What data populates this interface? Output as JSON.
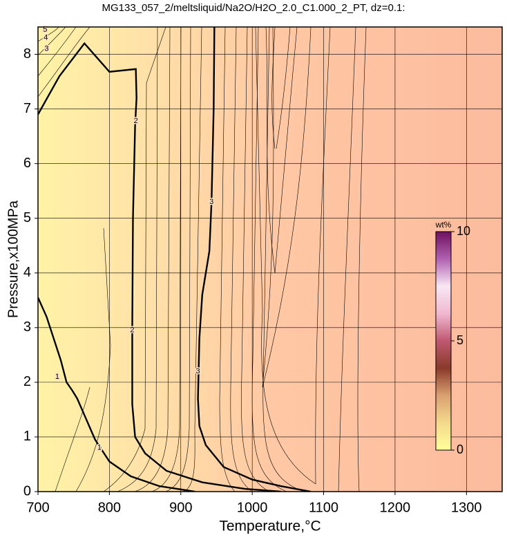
{
  "chart_data": {
    "type": "contour",
    "title": "MG133_057_2/meltsliquid/Na2O/H2O_2.0_C1.000_2_PT, dz=0.1:",
    "x_label": "Temperature,°C",
    "y_label": "Pressure,x100MPa",
    "xlim": [
      700,
      1350
    ],
    "ylim": [
      0,
      8.5
    ],
    "xticks": [
      700,
      800,
      900,
      1000,
      1100,
      1200,
      1300
    ],
    "yticks": [
      0,
      1,
      2,
      3,
      4,
      5,
      6,
      7,
      8
    ],
    "grid": true,
    "contours": [
      {
        "level": 1,
        "x": [
          700,
          712,
          722,
          732,
          740,
          748,
          755,
          765,
          780,
          800,
          830,
          870,
          920
        ],
        "y": [
          3.55,
          3.2,
          2.8,
          2.4,
          2.0,
          1.85,
          1.7,
          1.4,
          0.95,
          0.55,
          0.28,
          0.1,
          0
        ]
      },
      {
        "level": 2,
        "x": [
          700,
          730,
          765,
          800,
          837,
          838,
          836,
          833,
          832,
          832,
          836,
          850,
          880,
          930,
          990,
          1040
        ],
        "y": [
          6.9,
          7.6,
          8.2,
          7.68,
          7.73,
          7.2,
          6.7,
          5.0,
          3.0,
          1.6,
          1.0,
          0.7,
          0.38,
          0.17,
          0.05,
          0
        ]
      },
      {
        "level": 3,
        "x": [
          947,
          946,
          943,
          940,
          930,
          926,
          924,
          926,
          935,
          960,
          1000,
          1040,
          1082
        ],
        "y": [
          8.5,
          7.0,
          5.3,
          4.4,
          3.6,
          2.8,
          1.7,
          1.2,
          0.85,
          0.45,
          0.22,
          0.1,
          0
        ]
      }
    ],
    "contour_labels": [
      {
        "level": 1,
        "x": 727,
        "y": 2.1
      },
      {
        "level": 1,
        "x": 786,
        "y": 0.8
      },
      {
        "level": 2,
        "x": 837,
        "y": 6.78
      },
      {
        "level": 2,
        "x": 832,
        "y": 2.95
      },
      {
        "level": 3,
        "x": 943,
        "y": 5.3
      },
      {
        "level": 3,
        "x": 924,
        "y": 2.2
      },
      {
        "level": 3,
        "x": 712,
        "y": 8.1
      },
      {
        "level": 4,
        "x": 711,
        "y": 8.3
      },
      {
        "level": 5,
        "x": 710,
        "y": 8.45
      }
    ],
    "colorbar": {
      "label": "wt%",
      "lim": [
        0,
        10
      ],
      "ticks": [
        0,
        5,
        10
      ],
      "colors": [
        "#ffff9a",
        "#f5d98c",
        "#d9a070",
        "#8a3a2a",
        "#c05870",
        "#f0b8d0",
        "#f8e8f4",
        "#b060b0",
        "#701060"
      ]
    }
  }
}
